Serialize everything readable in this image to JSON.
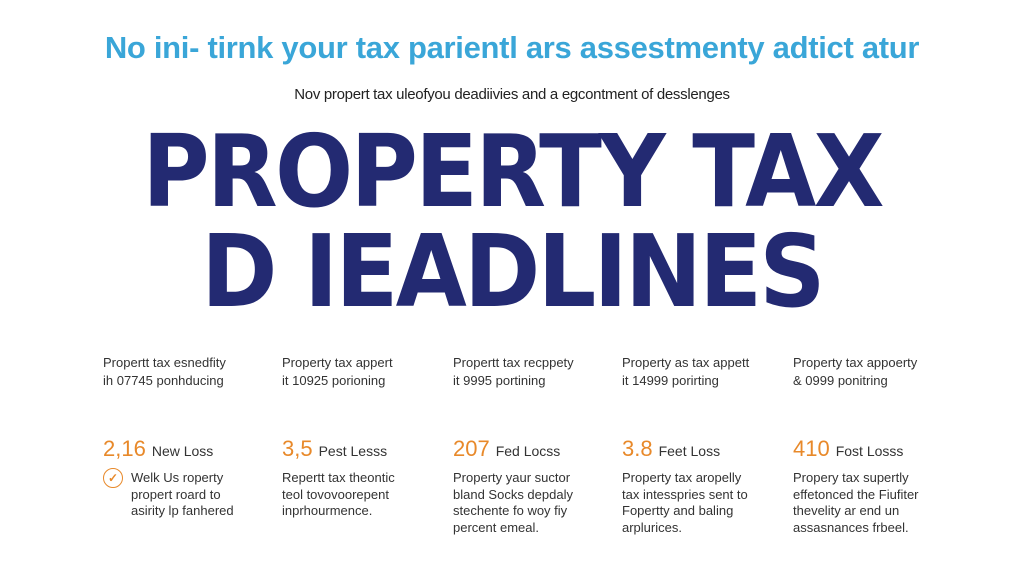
{
  "colors": {
    "title": "#3aa6d8",
    "headline": "#232a72",
    "accent": "#e8892a"
  },
  "title": "No ini- tirnk your tax parientl ars assestmenty adtict atur",
  "subtitle": "Nov propert tax uleofyou deadiivies and a egcontment of desslenges",
  "headline": {
    "line1": "PROPERTY TAX",
    "line2": "D IEADLINES"
  },
  "columns": [
    {
      "intro1": "Propertt tax esnedfity",
      "intro2": "ih 07745 ponhducing",
      "number": "2,16",
      "label": "New Loss",
      "icon": "check-circle-icon",
      "desc": [
        "Welk Us roperty",
        "propert roard to",
        "asirity lp fanhered"
      ]
    },
    {
      "intro1": "Property tax appert",
      "intro2": "it 10925 porioning",
      "number": "3,5",
      "label": "Pest Lesss",
      "desc": [
        "Repertt tax theontic",
        "teol tovovoorepent",
        "inprhourmence."
      ]
    },
    {
      "intro1": "Propertt tax recppety",
      "intro2": "it 9995 portining",
      "number": "207",
      "label": "Fed Locss",
      "desc": [
        "Property yaur suctor",
        "bland Socks depdaly",
        "stechente fo woy fiy",
        "percent emeal."
      ]
    },
    {
      "intro1": "Property as tax appett",
      "intro2": "it 14999 porirting",
      "number": "3.8",
      "label": "Feet Loss",
      "desc": [
        "Property tax aropelly",
        "tax intesspries sent to",
        "Fopertty and baling",
        "arplurices."
      ]
    },
    {
      "intro1": "Property tax appoerty",
      "intro2": "& 0999 ponitring",
      "number": "410",
      "label": "Fost Losss",
      "desc": [
        "Propery tax supertly",
        "effetonced the Fiufiter",
        "thevelity ar end un",
        "assasnances frbeel."
      ]
    }
  ]
}
